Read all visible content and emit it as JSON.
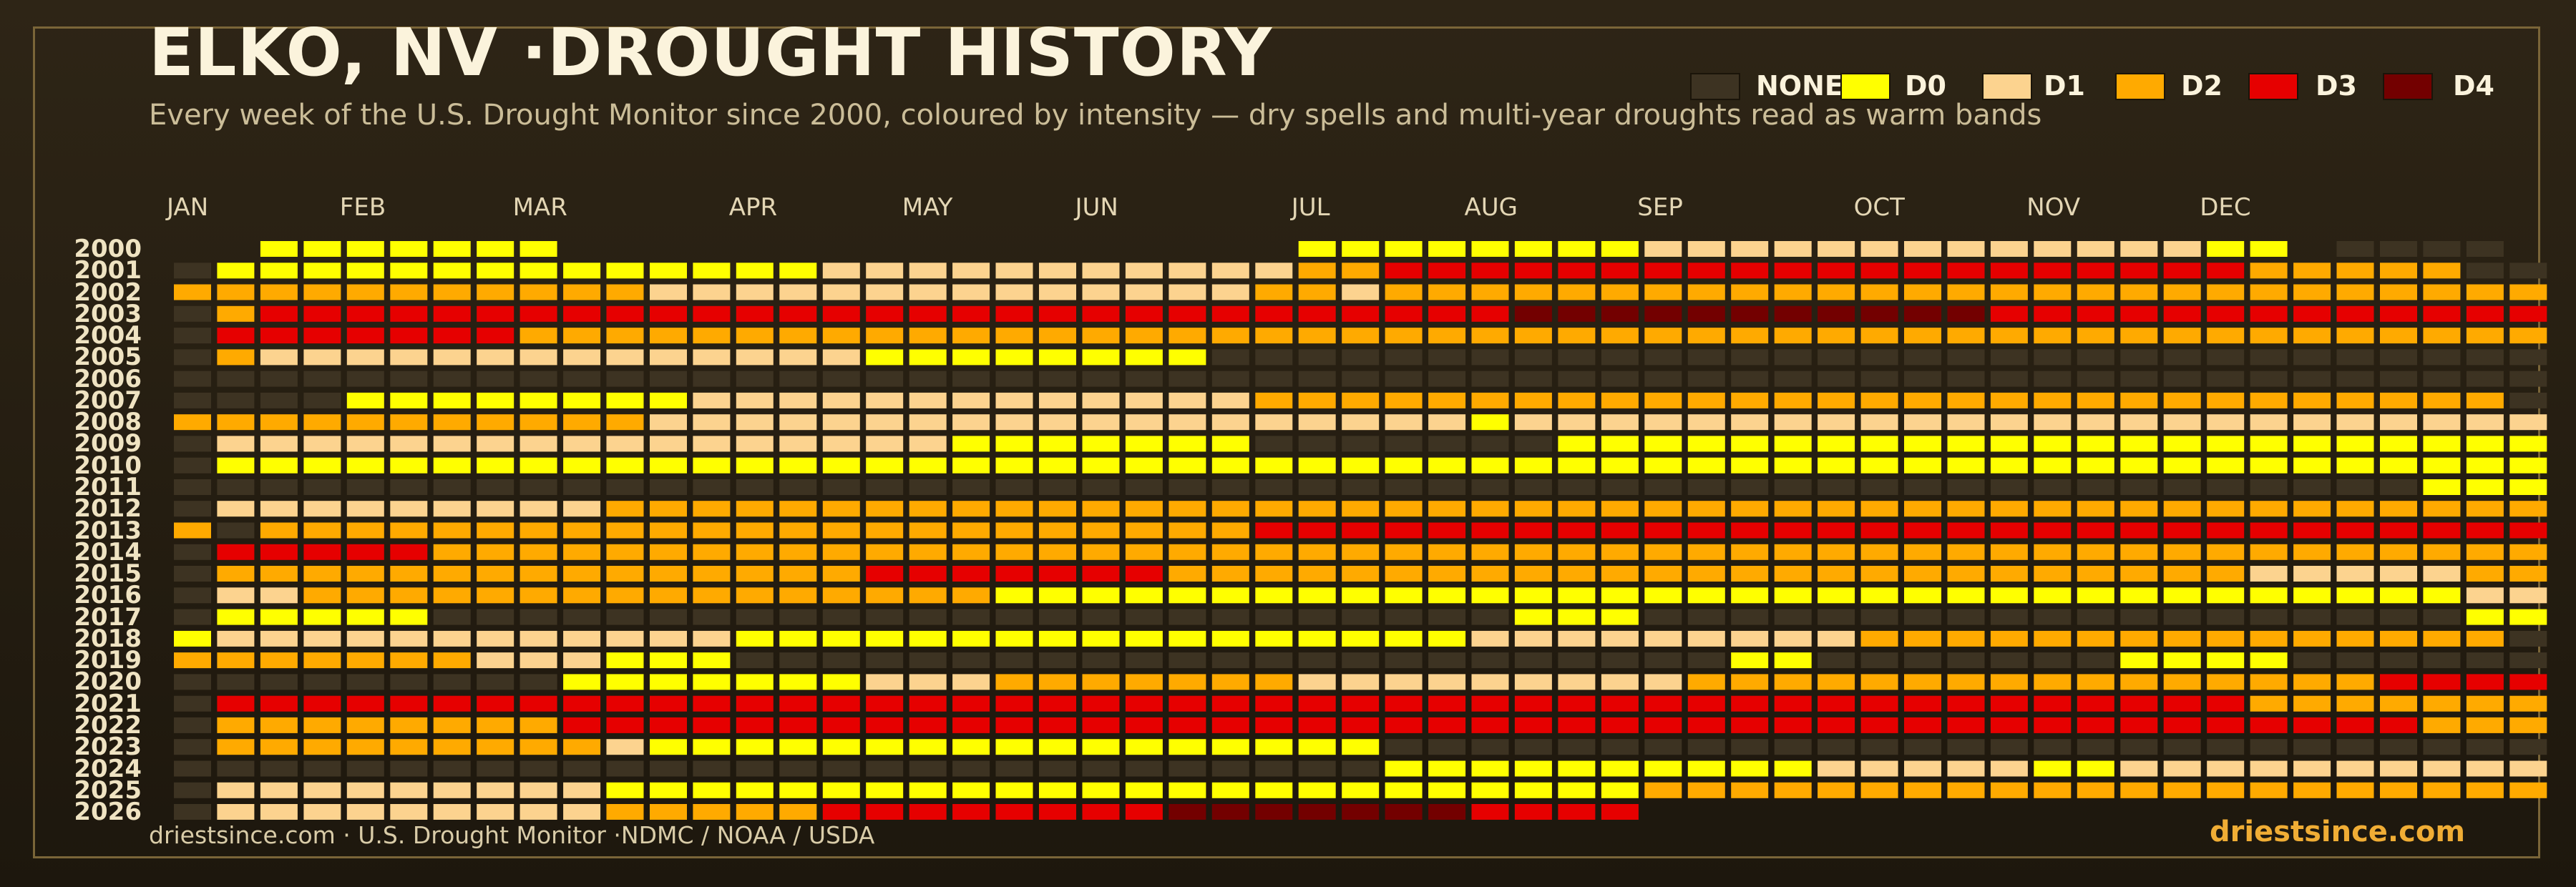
{
  "title": "ELKO, NV ·DROUGHT HISTORY",
  "subtitle": "Every week of the U.S. Drought Monitor since 2000, coloured by intensity — dry spells and multi-year droughts read as warm bands",
  "footer": {
    "source": "driestsince.com  · U.S. Drought Monitor ·NDMC / NOAA / USDA",
    "brand": "driestsince.com"
  },
  "legend": [
    {
      "label": "NONE",
      "color": "#3d3322"
    },
    {
      "label": "D0",
      "color": "#ffff00"
    },
    {
      "label": "D1",
      "color": "#fcd38f"
    },
    {
      "label": "D2",
      "color": "#ffaa00"
    },
    {
      "label": "D3",
      "color": "#e60000"
    },
    {
      "label": "D4",
      "color": "#730000"
    }
  ],
  "chart_data": {
    "type": "heatmap",
    "x_axis": "week of year",
    "month_labels": [
      {
        "label": "JAN",
        "week": 1
      },
      {
        "label": "FEB",
        "week": 5
      },
      {
        "label": "MAR",
        "week": 9
      },
      {
        "label": "APR",
        "week": 14
      },
      {
        "label": "MAY",
        "week": 18
      },
      {
        "label": "JUN",
        "week": 22
      },
      {
        "label": "JUL",
        "week": 27
      },
      {
        "label": "AUG",
        "week": 31
      },
      {
        "label": "SEP",
        "week": 35
      },
      {
        "label": "OCT",
        "week": 40
      },
      {
        "label": "NOV",
        "week": 44
      },
      {
        "label": "DEC",
        "week": 48
      }
    ],
    "levels": [
      "NONE",
      "D0",
      "D1",
      "D2",
      "D3",
      "D4"
    ],
    "encoding": "one character per week, weeks 1-53; '.' = no data, 0 = NONE, 1 = D0, 2 = D1, 3 = D2, 4 = D3, 5 = D4",
    "rows": [
      {
        "year": "2000",
        "weeks": "..1111111.................11111111222222222222211.0000"
      },
      {
        "year": "2001",
        "weeks": "0111111111111112222222222233444444444444444444443333300"
      },
      {
        "year": "2002",
        "weeks": "3333333333322222222222222332333333333333333333333333333"
      },
      {
        "year": "2003",
        "weeks": "0344444444444444444444444444444555555555554444444444444"
      },
      {
        "year": "2004",
        "weeks": "0444444433333333333333333333333333333333333333333333333"
      },
      {
        "year": "2005",
        "weeks": "0322222222222222111111110000000000000000000000000000000"
      },
      {
        "year": "2006",
        "weeks": "0000000000000000000000000000000000000000000000000000000"
      },
      {
        "year": "2007",
        "weeks": "0000111111112222222222222333333333333333333333333333330"
      },
      {
        "year": "2008",
        "weeks": "3333333333322222222222222222221222222222222222222222222"
      },
      {
        "year": "2009",
        "weeks": "0222222222222222221111111000000011111111111111111111111"
      },
      {
        "year": "2010",
        "weeks": "0111111111111111111111111111111111111111111111111111111"
      },
      {
        "year": "2011",
        "weeks": "0000000000000000000000000000000000000000000000000000111"
      },
      {
        "year": "2012",
        "weeks": "0222222222333333333333333333333333333333333333333333333"
      },
      {
        "year": "2013",
        "weeks": "3033333333333333333333333444444444444444444444444444444"
      },
      {
        "year": "2014",
        "weeks": "0444443333333333333333333333333333333333333333333333333"
      },
      {
        "year": "2015",
        "weeks": "0333333333333333444444433333333333333333333333332222233"
      },
      {
        "year": "2016",
        "weeks": "0223333333333333333111111111111111111111111111111111122"
      },
      {
        "year": "2017",
        "weeks": "0111110000000000000000000000000111000000000000000000011"
      },
      {
        "year": "2018",
        "weeks": "1222222222222111111111111111112222222223333333333333330"
      },
      {
        "year": "2019",
        "weeks": "3333333222111000000000000000000000001100000001111000000"
      },
      {
        "year": "2020",
        "weeks": "0000000001111111222333333322222222233333333333333334444"
      },
      {
        "year": "2021",
        "weeks": "0444444444444444444444444444444444444444444444443333333"
      },
      {
        "year": "2022",
        "weeks": "0333333334444444444444444444444444444444444444444444333"
      },
      {
        "year": "2023",
        "weeks": "0333333333211111111111111111000000000000000000000000000"
      },
      {
        "year": "2024",
        "weeks": "0000000000000000000000000000111111111122222112222222222"
      },
      {
        "year": "2025",
        "weeks": "0222222222111111111111111111111111333333333333333333333"
      },
      {
        "year": "2026",
        "weeks": "0222222222333334444444455555554444......................"
      }
    ]
  }
}
